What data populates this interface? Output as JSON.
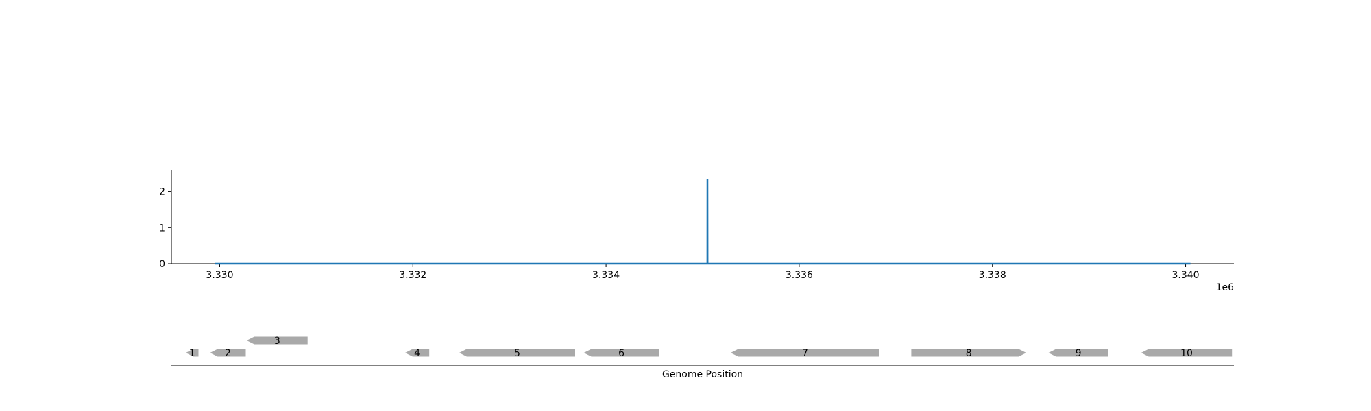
{
  "chart_data": [
    {
      "type": "line",
      "x": [
        3329950,
        3335049,
        3335050,
        3335051,
        3340050
      ],
      "y": [
        0,
        0,
        2.35,
        0,
        0
      ],
      "xlim": [
        3329500,
        3340500
      ],
      "ylim": [
        0,
        2.6
      ],
      "x_ticks": [
        3330000,
        3332000,
        3334000,
        3336000,
        3338000,
        3340000
      ],
      "x_tick_labels": [
        "3.330",
        "3.332",
        "3.334",
        "3.336",
        "3.338",
        "3.340"
      ],
      "x_offset_label": "1e6",
      "y_ticks": [
        0,
        1,
        2
      ],
      "y_tick_labels": [
        "0",
        "1",
        "2"
      ],
      "line_color": "#1f77b4",
      "grid": false
    },
    {
      "type": "gene_map",
      "xlabel": "Genome Position",
      "xlim": [
        3329500,
        3340500
      ],
      "gene_color": "#a9a9a9",
      "genes": [
        {
          "label": "1",
          "start": 3329650,
          "end": 3329780,
          "strand": "-",
          "row": 0
        },
        {
          "label": "2",
          "start": 3329900,
          "end": 3330270,
          "strand": "-",
          "row": 0
        },
        {
          "label": "3",
          "start": 3330280,
          "end": 3330910,
          "strand": "-",
          "row": 1
        },
        {
          "label": "4",
          "start": 3331920,
          "end": 3332170,
          "strand": "-",
          "row": 0
        },
        {
          "label": "5",
          "start": 3332480,
          "end": 3333680,
          "strand": "-",
          "row": 0
        },
        {
          "label": "6",
          "start": 3333770,
          "end": 3334550,
          "strand": "-",
          "row": 0
        },
        {
          "label": "7",
          "start": 3335290,
          "end": 3336830,
          "strand": "-",
          "row": 0
        },
        {
          "label": "8",
          "start": 3337160,
          "end": 3338350,
          "strand": "+",
          "row": 0
        },
        {
          "label": "9",
          "start": 3338580,
          "end": 3339200,
          "strand": "-",
          "row": 0
        },
        {
          "label": "10",
          "start": 3339540,
          "end": 3340480,
          "strand": "-",
          "row": 0
        }
      ]
    }
  ]
}
